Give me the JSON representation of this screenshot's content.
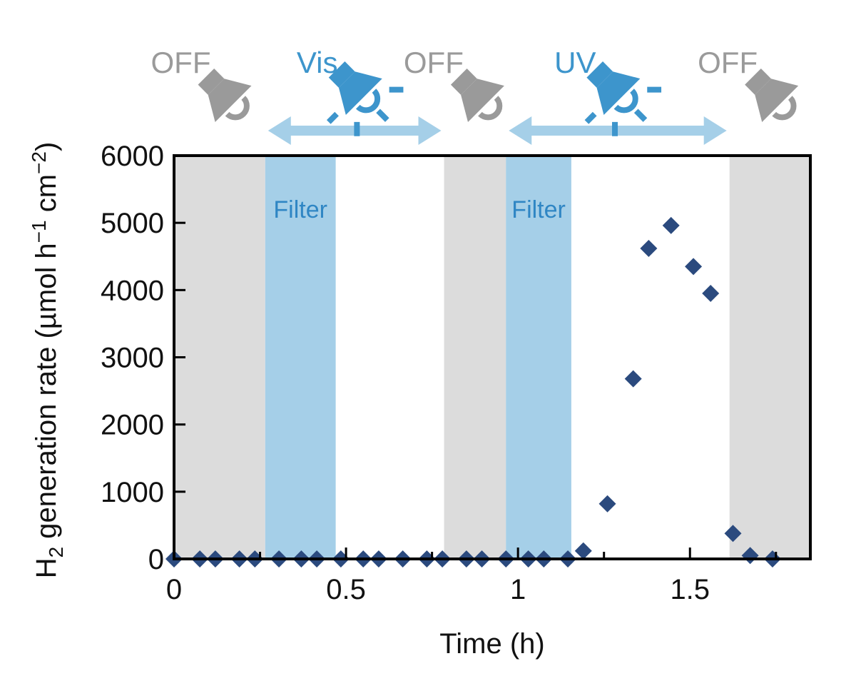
{
  "chart_data": {
    "type": "scatter",
    "title": "",
    "xlabel": "Time (h)",
    "ylabel": {
      "lead": "H",
      "sub": "2",
      "main": " generation rate (µmol h",
      "sup1": "−1",
      "mid": " cm",
      "sup2": "−2",
      "end": ")"
    },
    "xlim": [
      0,
      1.85
    ],
    "ylim": [
      0,
      6000
    ],
    "xticks": [
      0,
      0.5,
      1,
      1.5
    ],
    "xtick_labels": [
      "0",
      "0.5",
      "1",
      "1.5"
    ],
    "yticks": [
      0,
      1000,
      2000,
      3000,
      4000,
      5000,
      6000
    ],
    "ytick_labels": [
      "0",
      "1000",
      "2000",
      "3000",
      "4000",
      "5000",
      "6000"
    ],
    "grid": false,
    "marker": "diamond",
    "marker_color": "#2b4a7e",
    "series": [
      {
        "x": [
          0.0,
          0.075,
          0.12,
          0.19,
          0.235,
          0.305,
          0.37,
          0.415,
          0.485,
          0.55,
          0.595,
          0.665,
          0.735,
          0.78,
          0.85,
          0.895,
          0.965,
          1.03,
          1.075,
          1.145,
          1.19,
          1.26,
          1.335,
          1.38,
          1.445,
          1.51,
          1.56,
          1.625,
          1.675,
          1.74
        ],
        "y": [
          0,
          0,
          0,
          0,
          0,
          0,
          0,
          0,
          0,
          0,
          0,
          0,
          0,
          0,
          0,
          0,
          0,
          0,
          0,
          0,
          120,
          820,
          2680,
          4620,
          4960,
          4350,
          3950,
          380,
          50,
          0
        ]
      }
    ],
    "regions": [
      {
        "x0": 0.0,
        "x1": 0.265,
        "color": "#dcdcdc",
        "label": ""
      },
      {
        "x0": 0.265,
        "x1": 0.47,
        "color": "#a5cfe8",
        "label": "Filter"
      },
      {
        "x0": 0.785,
        "x1": 0.965,
        "color": "#dcdcdc",
        "label": ""
      },
      {
        "x0": 0.965,
        "x1": 1.155,
        "color": "#a5cfe8",
        "label": "Filter"
      },
      {
        "x0": 1.615,
        "x1": 1.85,
        "color": "#dcdcdc",
        "label": ""
      }
    ],
    "light_modes": [
      {
        "label": "OFF",
        "x": 0.14,
        "state": "off"
      },
      {
        "label": "Vis",
        "x": 0.52,
        "state": "on",
        "span": [
          0.265,
          0.785
        ]
      },
      {
        "label": "OFF",
        "x": 0.875,
        "state": "off"
      },
      {
        "label": "UV",
        "x": 1.27,
        "state": "on",
        "span": [
          0.965,
          1.615
        ]
      },
      {
        "label": "OFF",
        "x": 1.73,
        "state": "off"
      }
    ],
    "colors": {
      "off": "#9a9a9a",
      "on": "#3d95cc",
      "arrow": "#a5cfe8",
      "filter_text": "#2f86c4",
      "axes": "#000000"
    }
  }
}
